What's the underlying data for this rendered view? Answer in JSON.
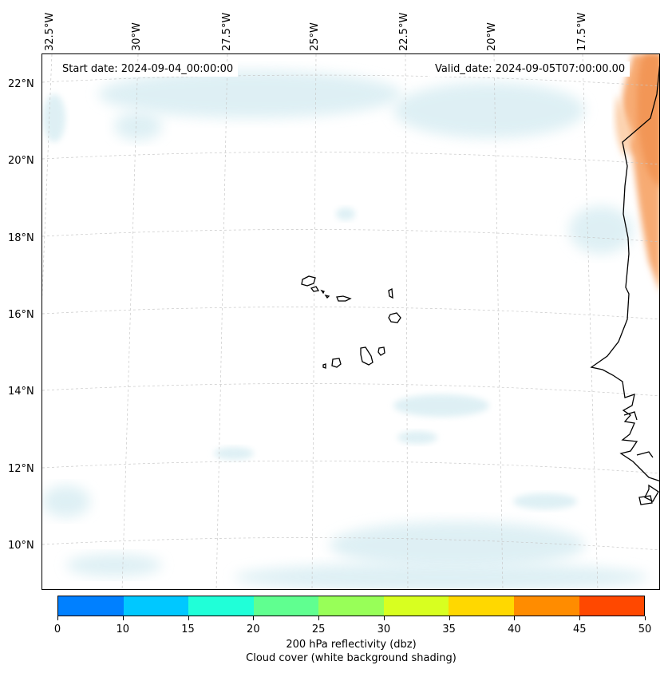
{
  "map": {
    "start_date_label": "Start date: 2024-09-04_00:00:00",
    "valid_date_label": "Valid_date: 2024-09-05T07:00:00.00",
    "longitude_labels": [
      "32.5°W",
      "30°W",
      "27.5°W",
      "25°W",
      "22.5°W",
      "20°W",
      "17.5°W"
    ],
    "latitude_labels": [
      "22°N",
      "20°N",
      "18°N",
      "16°N",
      "14°N",
      "12°N",
      "10°N"
    ],
    "features": [
      "cape-verde-islands",
      "west-africa-coastline",
      "cloud-cover-shading",
      "reflectivity-shading"
    ]
  },
  "colorbar": {
    "ticks": [
      "0",
      "10",
      "15",
      "20",
      "25",
      "30",
      "35",
      "40",
      "45",
      "50"
    ],
    "colors": [
      "#0080ff",
      "#00c8ff",
      "#20ffd8",
      "#60ff90",
      "#98ff58",
      "#d8ff20",
      "#ffd800",
      "#ff8c00",
      "#ff4800"
    ],
    "label_line1": "200 hPa reflectivity (dbz)",
    "label_line2": "Cloud cover (white background shading)"
  }
}
